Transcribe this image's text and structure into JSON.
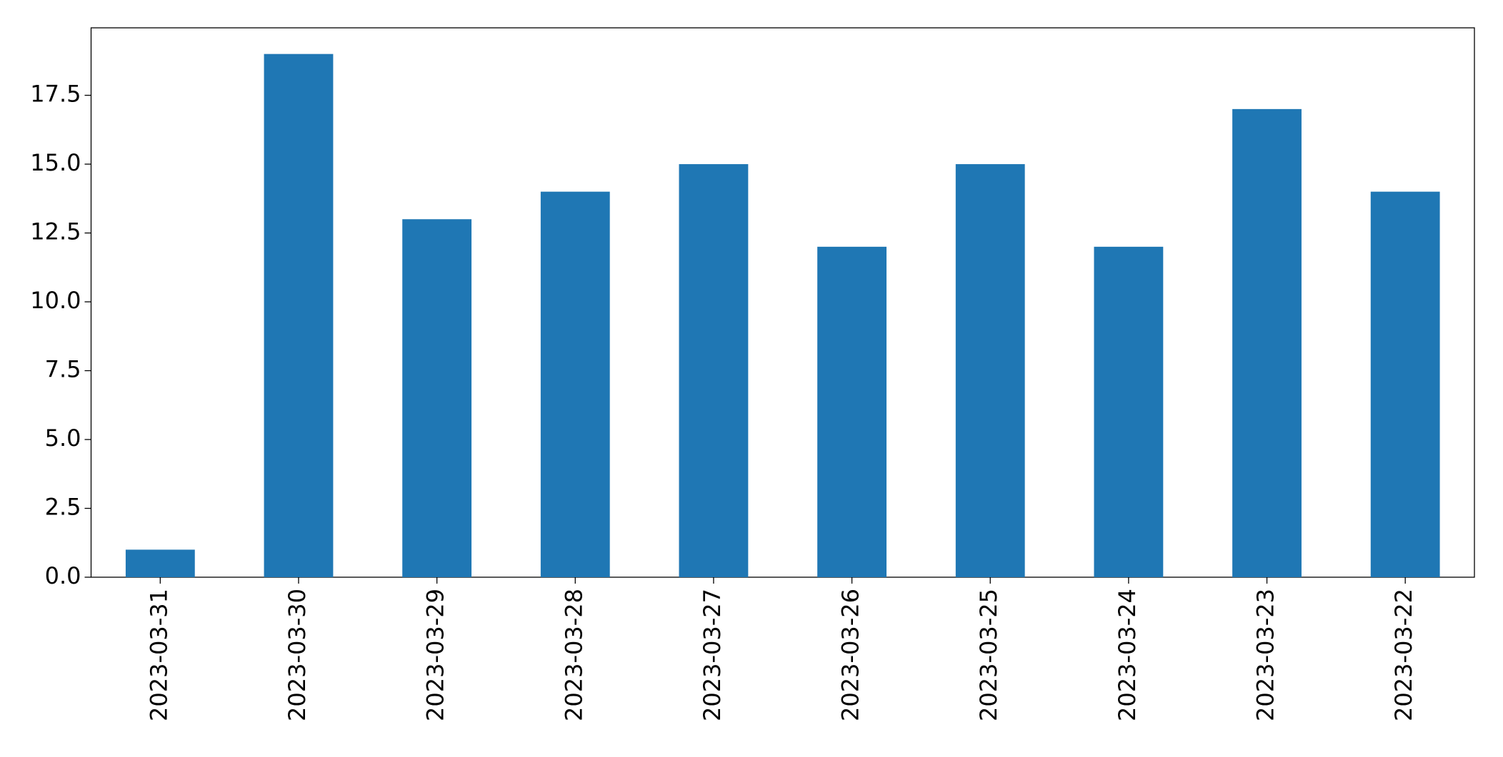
{
  "chart_data": {
    "type": "bar",
    "categories": [
      "2023-03-31",
      "2023-03-30",
      "2023-03-29",
      "2023-03-28",
      "2023-03-27",
      "2023-03-26",
      "2023-03-25",
      "2023-03-24",
      "2023-03-23",
      "2023-03-22"
    ],
    "values": [
      1,
      19,
      13,
      14,
      15,
      12,
      15,
      12,
      17,
      14
    ],
    "color": "#1f77b4",
    "ylim": [
      0,
      19.95
    ],
    "yticks": [
      {
        "value": 0,
        "label": "0.0"
      },
      2.5,
      {
        "value": 5,
        "label": "5.0"
      },
      7.5,
      {
        "value": 10,
        "label": "10.0"
      },
      12.5,
      {
        "value": 15,
        "label": "15.0"
      },
      17.5
    ],
    "grid": false
  }
}
